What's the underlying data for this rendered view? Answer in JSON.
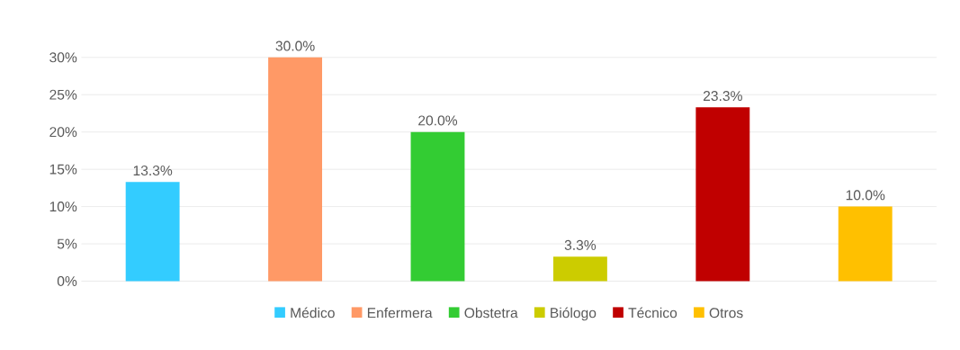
{
  "chart_data": {
    "type": "bar",
    "categories": [
      null,
      null,
      null,
      null,
      null,
      null
    ],
    "series": [
      {
        "name": "Médico",
        "color": "#33ccff",
        "values": [
          13.3,
          null,
          null,
          null,
          null,
          null
        ],
        "value_labels": [
          "13.3%",
          null,
          null,
          null,
          null,
          null
        ]
      },
      {
        "name": "Enfermera",
        "color": "#ff9966",
        "values": [
          null,
          30.0,
          null,
          null,
          null,
          null
        ],
        "value_labels": [
          null,
          "30.0%",
          null,
          null,
          null,
          null
        ]
      },
      {
        "name": "Obstetra",
        "color": "#33cc33",
        "values": [
          null,
          null,
          20.0,
          null,
          null,
          null
        ],
        "value_labels": [
          null,
          null,
          "20.0%",
          null,
          null,
          null
        ]
      },
      {
        "name": "Biólogo",
        "color": "#cccc00",
        "values": [
          null,
          null,
          null,
          3.3,
          null,
          null
        ],
        "value_labels": [
          null,
          null,
          null,
          "3.3%",
          null,
          null
        ]
      },
      {
        "name": "Técnico",
        "color": "#c00000",
        "values": [
          null,
          null,
          null,
          null,
          23.3,
          null
        ],
        "value_labels": [
          null,
          null,
          null,
          null,
          "23.3%",
          null
        ]
      },
      {
        "name": "Otros",
        "color": "#ffc000",
        "values": [
          null,
          null,
          null,
          null,
          null,
          10.0
        ],
        "value_labels": [
          null,
          null,
          null,
          null,
          null,
          "10.0%"
        ]
      }
    ],
    "ylim": [
      0,
      30
    ],
    "yticks": [
      {
        "value": 0,
        "label": "0%"
      },
      {
        "value": 5,
        "label": "5%"
      },
      {
        "value": 10,
        "label": "10%"
      },
      {
        "value": 15,
        "label": "15%"
      },
      {
        "value": 20,
        "label": "20%"
      },
      {
        "value": 25,
        "label": "25%"
      },
      {
        "value": 30,
        "label": "30%"
      }
    ],
    "grid": "y",
    "legend": "bottom",
    "tick_labels": "y"
  }
}
